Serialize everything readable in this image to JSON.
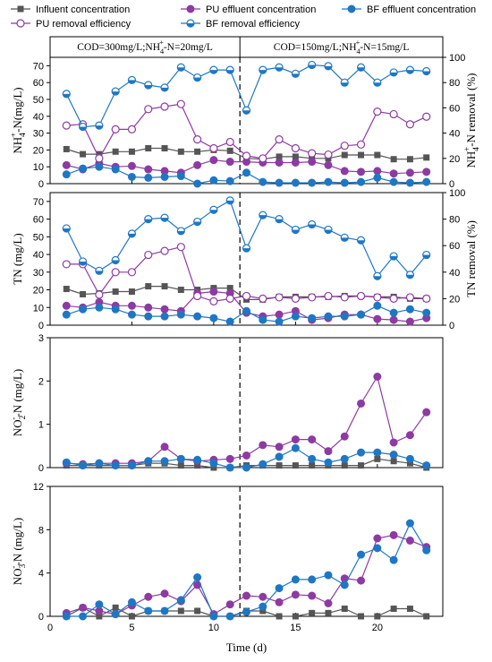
{
  "chart_data": {
    "type": "line",
    "xlabel": "Time (d)",
    "x_ticks": [
      0,
      5,
      10,
      15,
      20
    ],
    "xlim": [
      0,
      24
    ],
    "x": [
      1,
      2,
      3,
      4,
      5,
      6,
      7,
      8,
      9,
      10,
      11,
      12,
      13,
      14,
      15,
      16,
      17,
      18,
      19,
      20,
      21,
      22,
      23
    ],
    "divider_x": 11.6,
    "conditions": [
      {
        "parts": [
          "COD=300mg/L;NH",
          "4",
          "+",
          "-N=20mg/L"
        ]
      },
      {
        "parts": [
          "COD=150mg/L;NH",
          "4",
          "+",
          "-N=15mg/L"
        ]
      }
    ],
    "legend": [
      {
        "label": "Influent concentration",
        "color": "#555555",
        "marker": "square"
      },
      {
        "label": "PU effluent concentration",
        "color": "#8e3aa3",
        "marker": "circle"
      },
      {
        "label": "BF effluent concentration",
        "color": "#1f77c4",
        "marker": "circle"
      },
      {
        "label": "PU removal efficiency",
        "color": "#8e3aa3",
        "marker": "open-circle"
      },
      {
        "label": "BF removal efficiency",
        "color": "#1f77c4",
        "marker": "half-circle"
      }
    ],
    "panels": [
      {
        "ylabel_parts": [
          "NH",
          "4",
          "+",
          "-N(mg/L)"
        ],
        "y2label_parts": [
          "NH",
          "4",
          "+",
          "-N removal (%)"
        ],
        "ylim": [
          0,
          75
        ],
        "yticks": [
          0,
          10,
          20,
          30,
          40,
          50,
          60,
          70
        ],
        "y2lim": [
          0,
          100
        ],
        "y2ticks": [
          0,
          20,
          40,
          60,
          80,
          100
        ],
        "series": [
          {
            "name": "Influent concentration",
            "axis": "left",
            "values": [
              20.5,
              17.5,
              17.5,
              19,
              19,
              21,
              21,
              19,
              19,
              20,
              19.5,
              15,
              14.5,
              16,
              16,
              15,
              15,
              17,
              17,
              17,
              14.5,
              14.5,
              15.5
            ]
          },
          {
            "name": "PU effluent concentration",
            "axis": "left",
            "values": [
              11,
              8.5,
              12,
              10,
              10.5,
              8.5,
              7.5,
              6.5,
              11,
              14,
              13,
              13,
              12.5,
              12.5,
              12.5,
              13,
              11,
              7.5,
              7,
              7.5,
              6,
              6.5,
              7
            ]
          },
          {
            "name": "BF effluent concentration",
            "axis": "left",
            "values": [
              5.5,
              9,
              10,
              8.5,
              4,
              3.5,
              4,
              4.5,
              0,
              2,
              1.5,
              6.5,
              1,
              0.5,
              0.5,
              0.5,
              1,
              0.5,
              1,
              3.5,
              1,
              0.5,
              1
            ]
          },
          {
            "name": "PU removal efficiency",
            "axis": "right",
            "values": [
              46,
              47,
              20,
              43,
              43,
              59,
              61,
              63,
              35,
              28,
              33,
              22,
              20,
              35,
              28,
              24,
              23,
              30,
              31,
              57,
              55,
              47,
              53
            ]
          },
          {
            "name": "BF removal efficiency",
            "axis": "right",
            "values": [
              71,
              45,
              46,
              73,
              82,
              78,
              76,
              92,
              84,
              90,
              90,
              58,
              90,
              92,
              87,
              94,
              93,
              80,
              92,
              80,
              88,
              90,
              89
            ]
          }
        ]
      },
      {
        "ylabel_parts": [
          "TN (mg/L)"
        ],
        "y2label_parts": [
          "TN removal (%)"
        ],
        "ylim": [
          0,
          75
        ],
        "yticks": [
          0,
          10,
          20,
          30,
          40,
          50,
          60,
          70
        ],
        "y2lim": [
          0,
          100
        ],
        "y2ticks": [
          0,
          20,
          40,
          60,
          80,
          100
        ],
        "series": [
          {
            "name": "Influent concentration",
            "axis": "left",
            "values": [
              20.5,
              17.5,
              18,
              19,
              19,
              22,
              22,
              20,
              20,
              21,
              21,
              14.5,
              14.5,
              16,
              16,
              16,
              16,
              16.5,
              16.5,
              16,
              16,
              15,
              15
            ]
          },
          {
            "name": "PU effluent concentration",
            "axis": "left",
            "values": [
              11,
              10,
              13,
              11,
              11,
              10,
              9,
              8,
              18,
              19,
              18,
              7,
              5,
              6,
              8,
              3,
              4,
              6,
              6,
              3.5,
              3,
              2,
              4
            ]
          },
          {
            "name": "BF effluent concentration",
            "axis": "left",
            "values": [
              6,
              9,
              10,
              9,
              6,
              5,
              5,
              6,
              5,
              4,
              2,
              8,
              3,
              2,
              5,
              4,
              5,
              5,
              6,
              11,
              7,
              9,
              7
            ]
          },
          {
            "name": "PU removal efficiency",
            "axis": "right",
            "values": [
              46,
              46,
              23,
              40,
              40,
              53,
              56,
              59,
              22,
              18,
              20,
              22,
              20,
              21,
              20,
              21,
              22,
              21,
              22,
              21,
              20,
              21,
              20
            ]
          },
          {
            "name": "BF removal efficiency",
            "axis": "right",
            "values": [
              73,
              48,
              41,
              49,
              69,
              80,
              81,
              71,
              78,
              87,
              94,
              58,
              83,
              80,
              72,
              76,
              72,
              66,
              64,
              37,
              52,
              38,
              53
            ]
          }
        ]
      },
      {
        "ylabel_parts": [
          "NO",
          "2",
          "-",
          "-N (mg/L)"
        ],
        "ylim": [
          0,
          3
        ],
        "yticks": [
          0,
          1,
          2,
          3
        ],
        "series": [
          {
            "name": "Influent concentration",
            "axis": "left",
            "values": [
              0.05,
              0.05,
              0.05,
              0.05,
              0.05,
              0.1,
              0.1,
              0.05,
              0.05,
              0,
              0,
              0.05,
              0.05,
              0.05,
              0.05,
              0.05,
              0.05,
              0.05,
              0.05,
              0.2,
              0.15,
              0.1,
              0
            ]
          },
          {
            "name": "PU effluent concentration",
            "axis": "left",
            "values": [
              0.1,
              0.08,
              0.1,
              0.1,
              0.1,
              0.15,
              0.48,
              0.2,
              0.15,
              0.18,
              0.2,
              0.28,
              0.52,
              0.48,
              0.65,
              0.65,
              0.38,
              0.72,
              1.48,
              2.1,
              0.58,
              0.75,
              1.28
            ]
          },
          {
            "name": "BF effluent concentration",
            "axis": "left",
            "values": [
              0.12,
              0.05,
              0.1,
              0.05,
              0.05,
              0.15,
              0.15,
              0.2,
              0.18,
              0.1,
              0,
              0,
              0.08,
              0.25,
              0.45,
              0.2,
              0.12,
              0.2,
              0.35,
              0.35,
              0.3,
              0.2,
              0.05
            ]
          }
        ]
      },
      {
        "ylabel_parts": [
          "NO",
          "3",
          "-",
          "-N (mg/L)"
        ],
        "ylim": [
          0,
          12
        ],
        "yticks": [
          0,
          4,
          8,
          12
        ],
        "series": [
          {
            "name": "Influent concentration",
            "axis": "left",
            "values": [
              0,
              0.8,
              0,
              0.8,
              0,
              0.5,
              0.5,
              0.5,
              0.5,
              0,
              0,
              0.5,
              0.5,
              0,
              0,
              0.3,
              0.3,
              0.7,
              0,
              0,
              0.7,
              0.7,
              0
            ]
          },
          {
            "name": "PU effluent concentration",
            "axis": "left",
            "values": [
              0.3,
              0.8,
              0.5,
              0.2,
              1,
              1.8,
              2.1,
              1.4,
              2.9,
              0.2,
              1.1,
              1.9,
              1.8,
              1.3,
              2,
              1.9,
              1.2,
              3.5,
              3.3,
              7.2,
              7.5,
              7,
              6.4
            ]
          },
          {
            "name": "BF effluent concentration",
            "axis": "left",
            "values": [
              0,
              0,
              1.1,
              0.2,
              1.3,
              0.5,
              0.5,
              1.5,
              3.6,
              0,
              0,
              0.4,
              0.9,
              2.6,
              3.4,
              3.4,
              3.8,
              2.9,
              5.7,
              6.3,
              5.2,
              8.6,
              6.1
            ]
          }
        ]
      }
    ]
  }
}
